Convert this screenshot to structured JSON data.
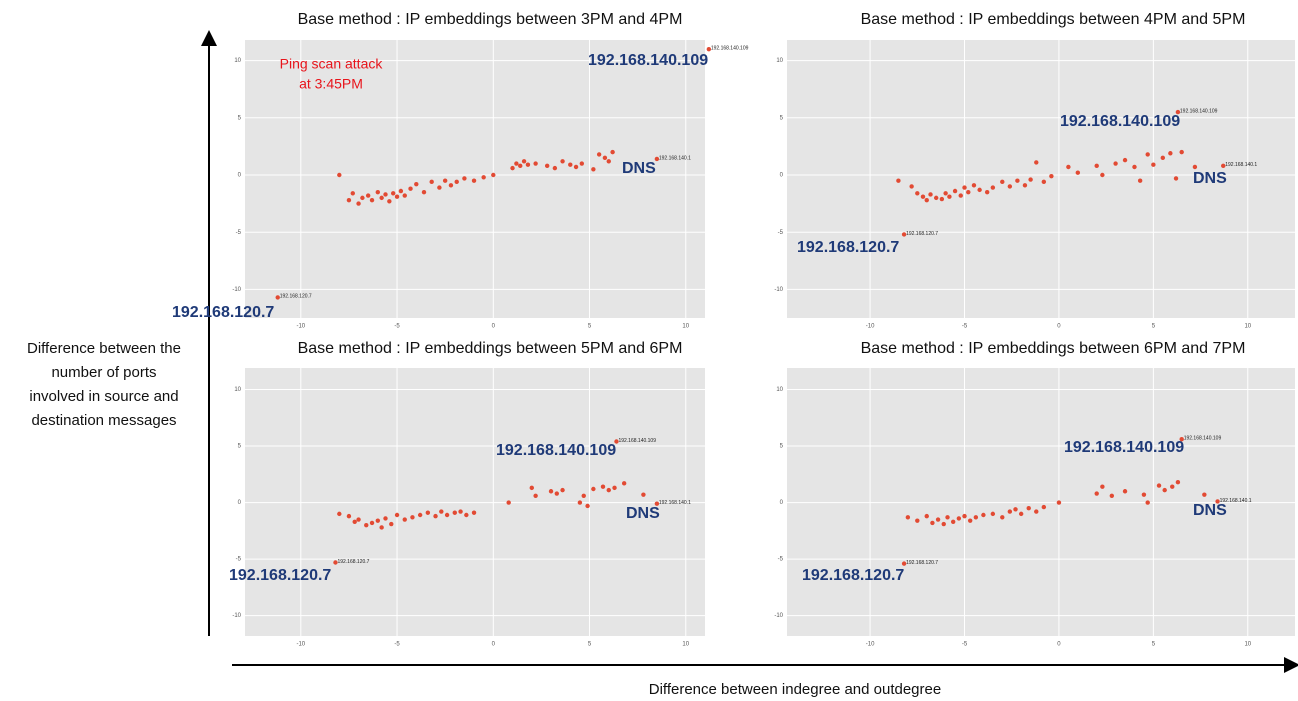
{
  "xlabel": "Difference between indegree and outdegree",
  "ylabel": [
    "Difference between the",
    "number of ports",
    "involved in source and",
    "destination messages"
  ],
  "chart_data": [
    {
      "type": "scatter",
      "title": "Base method : IP embeddings between 3PM and 4PM",
      "color": "#e24a33",
      "grid": true,
      "x": [
        -8,
        -7.5,
        -7.3,
        -7,
        -6.8,
        -6.5,
        -6.3,
        -6,
        -5.8,
        -5.6,
        -5.4,
        -5.2,
        -5,
        -4.8,
        -4.6,
        -4.3,
        -4,
        -3.6,
        -3.2,
        -2.8,
        -2.5,
        -2.2,
        -1.9,
        -1.5,
        -1,
        -0.5,
        0,
        1,
        1.2,
        1.4,
        1.6,
        1.8,
        2.2,
        2.8,
        3.2,
        3.6,
        4,
        4.3,
        4.6,
        5.2,
        5.5,
        5.8,
        6,
        6.2,
        8.5,
        11.2,
        -11.2
      ],
      "values": [
        0,
        -2.2,
        -1.6,
        -2.5,
        -2,
        -1.8,
        -2.2,
        -1.5,
        -2,
        -1.7,
        -2.3,
        -1.6,
        -1.9,
        -1.4,
        -1.8,
        -1.2,
        -0.8,
        -1.5,
        -0.6,
        -1.1,
        -0.5,
        -0.9,
        -0.6,
        -0.3,
        -0.5,
        -0.2,
        0,
        0.6,
        1,
        0.8,
        1.2,
        0.9,
        1,
        0.8,
        0.6,
        1.2,
        0.9,
        0.7,
        1,
        0.5,
        1.8,
        1.5,
        1.2,
        2,
        1.4,
        11,
        -10.7
      ],
      "xlim": [
        -12.9,
        11
      ],
      "ylim": [
        -12.5,
        11.8
      ],
      "xticks": [
        -10,
        -5,
        0,
        5,
        10
      ],
      "yticks": [
        -10,
        -5,
        0,
        5,
        10
      ],
      "annotations": [
        {
          "text": "192.168.140.109",
          "x": 11.2,
          "y": 11
        },
        {
          "text": "192.168.140.1",
          "x": 8.5,
          "y": 1.4
        },
        {
          "text": "192.168.120.7",
          "x": -11.2,
          "y": -10.7
        }
      ],
      "callouts": [
        "192.168.140.109",
        "DNS",
        "192.168.120.7"
      ],
      "notes": [
        "Ping scan attack",
        "at 3:45PM"
      ]
    },
    {
      "type": "scatter",
      "title": "Base method : IP embeddings between 4PM and 5PM",
      "color": "#e24a33",
      "grid": true,
      "x": [
        -8.5,
        -7.8,
        -7.5,
        -7.2,
        -7,
        -6.8,
        -6.5,
        -6.2,
        -6,
        -5.8,
        -5.5,
        -5.2,
        -5,
        -4.8,
        -4.5,
        -4.2,
        -3.8,
        -3.5,
        -3,
        -2.6,
        -2.2,
        -1.8,
        -1.5,
        -1.2,
        -0.8,
        -0.4,
        0.5,
        1,
        2,
        2.3,
        3,
        3.5,
        4,
        4.3,
        4.7,
        5,
        5.5,
        5.9,
        6.2,
        6.5,
        7.2,
        6.3,
        8.7,
        -8.2
      ],
      "values": [
        -0.5,
        -1,
        -1.6,
        -1.9,
        -2.2,
        -1.7,
        -2,
        -2.1,
        -1.6,
        -1.9,
        -1.4,
        -1.8,
        -1.1,
        -1.5,
        -0.9,
        -1.3,
        -1.5,
        -1.1,
        -0.6,
        -1,
        -0.5,
        -0.9,
        -0.4,
        1.1,
        -0.6,
        -0.1,
        0.7,
        0.2,
        0.8,
        0,
        1,
        1.3,
        0.7,
        -0.5,
        1.8,
        0.9,
        1.5,
        1.9,
        -0.3,
        2,
        0.7,
        5.5,
        0.8,
        -5.2
      ],
      "xlim": [
        -14.4,
        12.5
      ],
      "ylim": [
        -12.5,
        11.8
      ],
      "xticks": [
        -10,
        -5,
        0,
        5,
        10
      ],
      "yticks": [
        -10,
        -5,
        0,
        5,
        10
      ],
      "annotations": [
        {
          "text": "192.168.140.109",
          "x": 6.3,
          "y": 5.5
        },
        {
          "text": "192.168.140.1",
          "x": 8.7,
          "y": 0.8
        },
        {
          "text": "192.168.120.7",
          "x": -8.2,
          "y": -5.2
        }
      ],
      "callouts": [
        "192.168.140.109",
        "DNS",
        "192.168.120.7"
      ]
    },
    {
      "type": "scatter",
      "title": "Base method : IP embeddings between 5PM and 6PM",
      "color": "#e24a33",
      "grid": true,
      "x": [
        -8,
        -7.5,
        -7.2,
        -7,
        -6.6,
        -6.3,
        -6,
        -5.8,
        -5.6,
        -5.3,
        -5,
        -4.6,
        -4.2,
        -3.8,
        -3.4,
        -3,
        -2.7,
        -2.4,
        -2,
        -1.7,
        -1.4,
        -1,
        0.8,
        2,
        2.2,
        3,
        3.3,
        3.6,
        4.5,
        4.7,
        4.9,
        5.2,
        5.7,
        6,
        6.3,
        6.8,
        7.8,
        6.4,
        8.5,
        -8.2
      ],
      "values": [
        -1,
        -1.2,
        -1.7,
        -1.5,
        -2,
        -1.8,
        -1.6,
        -2.2,
        -1.4,
        -1.9,
        -1.1,
        -1.5,
        -1.3,
        -1.1,
        -0.9,
        -1.2,
        -0.8,
        -1.1,
        -0.9,
        -0.8,
        -1.1,
        -0.9,
        0,
        1.3,
        0.6,
        1,
        0.8,
        1.1,
        0,
        0.6,
        -0.3,
        1.2,
        1.4,
        1.1,
        1.3,
        1.7,
        0.7,
        5.4,
        -0.1,
        -5.3
      ],
      "xlim": [
        -12.9,
        11
      ],
      "ylim": [
        -11.8,
        11.9
      ],
      "xticks": [
        -10,
        -5,
        0,
        5,
        10
      ],
      "yticks": [
        -10,
        -5,
        0,
        5,
        10
      ],
      "annotations": [
        {
          "text": "192.168.140.109",
          "x": 6.4,
          "y": 5.4
        },
        {
          "text": "192.168.140.1",
          "x": 8.5,
          "y": -0.1
        },
        {
          "text": "192.168.120.7",
          "x": -8.2,
          "y": -5.3
        }
      ],
      "callouts": [
        "192.168.140.109",
        "DNS",
        "192.168.120.7"
      ]
    },
    {
      "type": "scatter",
      "title": "Base method : IP embeddings between 6PM and 7PM",
      "color": "#e24a33",
      "grid": true,
      "x": [
        -8,
        -7.5,
        -7,
        -6.7,
        -6.4,
        -6.1,
        -5.9,
        -5.6,
        -5.3,
        -5,
        -4.7,
        -4.4,
        -4,
        -3.5,
        -3,
        -2.6,
        -2.3,
        -2,
        -1.6,
        -1.2,
        -0.8,
        0,
        2,
        2.3,
        2.8,
        3.5,
        4.5,
        4.7,
        5.3,
        5.6,
        6,
        6.3,
        7.7,
        6.5,
        8.4,
        -8.2
      ],
      "values": [
        -1.3,
        -1.6,
        -1.2,
        -1.8,
        -1.5,
        -1.9,
        -1.3,
        -1.7,
        -1.4,
        -1.2,
        -1.6,
        -1.3,
        -1.1,
        -1,
        -1.3,
        -0.8,
        -0.6,
        -1,
        -0.5,
        -0.8,
        -0.4,
        0,
        0.8,
        1.4,
        0.6,
        1,
        0.7,
        0,
        1.5,
        1.1,
        1.4,
        1.8,
        0.7,
        5.6,
        0.1,
        -5.4
      ],
      "xlim": [
        -14.4,
        12.5
      ],
      "ylim": [
        -11.8,
        11.9
      ],
      "xticks": [
        -10,
        -5,
        0,
        5,
        10
      ],
      "yticks": [
        -10,
        -5,
        0,
        5,
        10
      ],
      "annotations": [
        {
          "text": "192.168.140.109",
          "x": 6.5,
          "y": 5.6
        },
        {
          "text": "192.168.140.1",
          "x": 8.4,
          "y": 0.1
        },
        {
          "text": "192.168.120.7",
          "x": -8.2,
          "y": -5.4
        }
      ],
      "callouts": [
        "192.168.140.109",
        "DNS",
        "192.168.120.7"
      ]
    }
  ]
}
